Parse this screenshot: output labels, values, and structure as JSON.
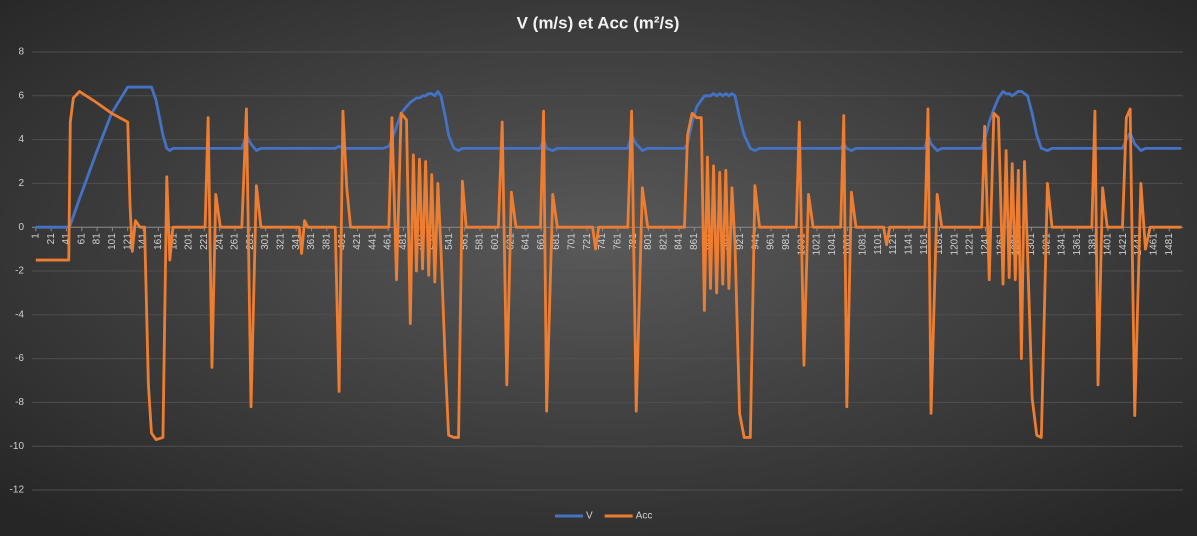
{
  "chart_data": {
    "type": "line",
    "title": "V (m/s)  et Acc (m²/s)",
    "x": [
      1,
      44,
      46,
      50,
      58,
      80,
      100,
      121,
      124,
      127,
      131,
      137,
      143,
      148,
      152,
      158,
      167,
      172,
      176,
      180,
      200,
      222,
      226,
      231,
      236,
      242,
      270,
      276,
      282,
      289,
      295,
      345,
      348,
      352,
      356,
      392,
      397,
      402,
      407,
      412,
      455,
      462,
      466,
      472,
      478,
      485,
      490,
      494,
      498,
      502,
      506,
      510,
      514,
      518,
      522,
      526,
      530,
      536,
      540,
      547,
      553,
      558,
      563,
      605,
      610,
      616,
      622,
      628,
      660,
      664,
      668,
      676,
      682,
      728,
      732,
      736,
      774,
      779,
      785,
      793,
      800,
      848,
      852,
      858,
      864,
      870,
      874,
      878,
      882,
      886,
      890,
      894,
      898,
      902,
      906,
      910,
      914,
      920,
      926,
      934,
      940,
      946,
      994,
      998,
      1004,
      1010,
      1016,
      1052,
      1056,
      1060,
      1066,
      1072,
      1108,
      1112,
      1116,
      1162,
      1166,
      1170,
      1178,
      1184,
      1236,
      1240,
      1246,
      1252,
      1258,
      1264,
      1268,
      1272,
      1276,
      1280,
      1284,
      1288,
      1292,
      1296,
      1302,
      1308,
      1314,
      1322,
      1328,
      1380,
      1384,
      1388,
      1394,
      1400,
      1420,
      1425,
      1430,
      1436,
      1444,
      1450,
      1456,
      1497
    ],
    "series": [
      {
        "name": "V",
        "color": "#4472c4",
        "values": [
          0,
          0,
          0.1,
          0.5,
          1.3,
          3.4,
          5.2,
          6.4,
          6.4,
          6.4,
          6.4,
          6.4,
          6.4,
          6.4,
          6.4,
          5.8,
          4.2,
          3.6,
          3.5,
          3.6,
          3.6,
          3.6,
          3.6,
          3.6,
          3.6,
          3.6,
          3.6,
          4.2,
          3.8,
          3.5,
          3.6,
          3.6,
          3.6,
          3.6,
          3.6,
          3.6,
          3.7,
          3.6,
          3.6,
          3.6,
          3.6,
          3.7,
          4.0,
          4.6,
          5.2,
          5.5,
          5.7,
          5.8,
          5.9,
          5.9,
          6.0,
          6.0,
          6.1,
          6.1,
          6.0,
          6.2,
          6.0,
          5.0,
          4.2,
          3.6,
          3.5,
          3.6,
          3.6,
          3.6,
          3.6,
          3.6,
          3.6,
          3.6,
          3.6,
          4.0,
          3.6,
          3.5,
          3.6,
          3.6,
          3.6,
          3.6,
          3.6,
          4.2,
          3.8,
          3.5,
          3.6,
          3.6,
          3.8,
          4.8,
          5.5,
          5.8,
          6.0,
          6.0,
          6.0,
          6.1,
          6.0,
          6.1,
          6.0,
          6.1,
          6.0,
          6.1,
          6.0,
          5.0,
          4.2,
          3.6,
          3.5,
          3.6,
          3.6,
          3.6,
          3.6,
          3.6,
          3.6,
          3.6,
          3.8,
          3.6,
          3.5,
          3.6,
          3.6,
          3.6,
          3.6,
          3.6,
          4.2,
          3.8,
          3.5,
          3.6,
          3.6,
          4.0,
          4.8,
          5.4,
          5.9,
          6.2,
          6.1,
          6.1,
          6.0,
          6.1,
          6.2,
          6.2,
          6.1,
          6.0,
          5.2,
          4.2,
          3.6,
          3.5,
          3.6,
          3.6,
          3.6,
          3.6,
          3.6,
          3.6,
          3.6,
          4.0,
          4.3,
          3.8,
          3.5,
          3.6,
          3.6,
          3.6
        ]
      },
      {
        "name": "Acc",
        "color": "#ed7d31",
        "values": [
          -1.5,
          -1.5,
          4.8,
          5.9,
          6.2,
          5.7,
          5.2,
          4.8,
          1.0,
          -1.1,
          0.3,
          0,
          0,
          -7.2,
          -9.4,
          -9.7,
          -9.6,
          2.3,
          -1.5,
          0,
          0,
          0,
          5.0,
          -6.4,
          1.5,
          0,
          0,
          5.4,
          -8.2,
          1.9,
          0,
          0,
          -1.2,
          0.3,
          0,
          0,
          -7.5,
          5.3,
          1.8,
          0,
          0,
          0,
          5.0,
          -2.4,
          5.2,
          4.9,
          -4.4,
          3.3,
          -2.0,
          3.1,
          -1.9,
          3.0,
          -2.2,
          2.4,
          -2.5,
          2.0,
          -1.0,
          -6.5,
          -9.5,
          -9.6,
          -9.6,
          2.1,
          0,
          0,
          4.8,
          -7.2,
          1.6,
          0,
          0,
          5.3,
          -8.4,
          1.5,
          0,
          0,
          -1.0,
          0,
          0,
          5.3,
          -8.4,
          1.8,
          0,
          0,
          4.2,
          5.2,
          5.0,
          5.0,
          -3.8,
          3.2,
          -2.8,
          2.8,
          -3.0,
          2.5,
          -2.6,
          2.6,
          -2.8,
          1.8,
          -0.8,
          -8.5,
          -9.6,
          -9.6,
          1.9,
          0,
          0,
          4.8,
          -6.3,
          1.5,
          0,
          0,
          5.1,
          -8.2,
          1.6,
          0,
          0,
          -0.8,
          0,
          0,
          5.4,
          -8.5,
          1.5,
          0,
          0,
          4.6,
          -2.4,
          5.2,
          5.0,
          -2.6,
          3.5,
          -2.3,
          2.9,
          -2.4,
          2.6,
          -6.0,
          3.0,
          -1.2,
          -7.8,
          -9.5,
          -9.6,
          2.0,
          0,
          0,
          5.3,
          -7.2,
          1.8,
          0,
          0,
          5.0,
          5.4,
          -8.6,
          2.0,
          -1.0,
          0,
          0
        ]
      }
    ],
    "xlim": [
      -4,
      1499
    ],
    "xticks": [
      1,
      21,
      41,
      61,
      81,
      101,
      121,
      141,
      161,
      181,
      201,
      221,
      241,
      261,
      281,
      301,
      321,
      341,
      361,
      381,
      401,
      421,
      441,
      461,
      481,
      501,
      521,
      541,
      561,
      581,
      601,
      621,
      641,
      661,
      681,
      701,
      721,
      741,
      761,
      781,
      801,
      821,
      841,
      861,
      881,
      901,
      921,
      941,
      961,
      981,
      1001,
      1021,
      1041,
      1061,
      1081,
      1101,
      1121,
      1141,
      1161,
      1181,
      1201,
      1221,
      1241,
      1261,
      1281,
      1301,
      1321,
      1341,
      1361,
      1381,
      1401,
      1421,
      1441,
      1461,
      1481
    ],
    "ylim": [
      -12,
      8
    ],
    "yticks": [
      -12,
      -10,
      -8,
      -6,
      -4,
      -2,
      0,
      2,
      4,
      6,
      8
    ],
    "grid": true,
    "legend": "bottom"
  }
}
